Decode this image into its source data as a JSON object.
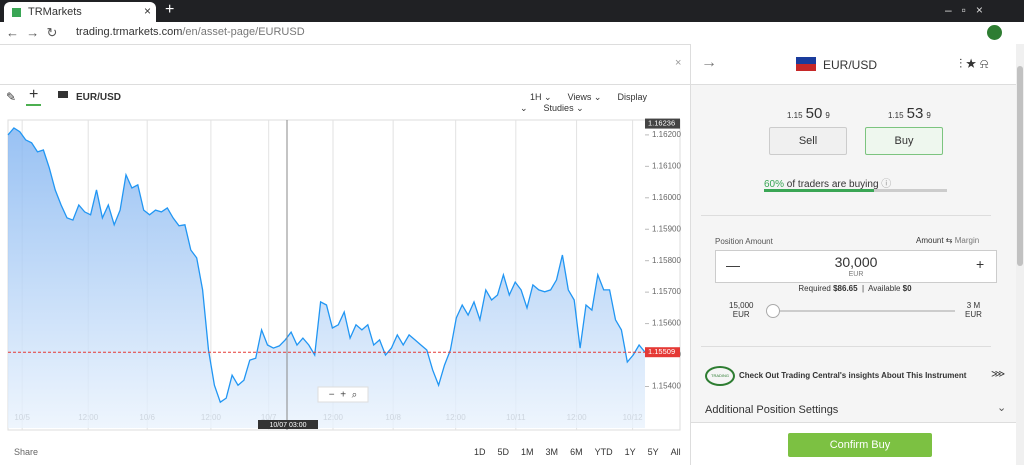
{
  "browser": {
    "tab_title": "TRMarkets",
    "url_host": "trading.trmarkets.com",
    "url_path": "/en/asset-page/EURUSD"
  },
  "chart": {
    "type": "line",
    "symbol": "EUR/USD",
    "toolbar": [
      "1H",
      "Views",
      "Display",
      "Studies"
    ],
    "values": [
      1.162,
      1.16222,
      1.1621,
      1.16184,
      1.16175,
      1.16146,
      1.16152,
      1.16095,
      1.16025,
      1.15977,
      1.15936,
      1.15929,
      1.15977,
      1.15955,
      1.15946,
      1.16025,
      1.15936,
      1.15977,
      1.15914,
      1.15961,
      1.16073,
      1.16031,
      1.16041,
      1.15961,
      1.15946,
      1.15961,
      1.15955,
      1.15968,
      1.15936,
      1.15911,
      1.15914,
      1.15834,
      1.15809,
      1.15707,
      1.15516,
      1.15404,
      1.1535,
      1.15363,
      1.15436,
      1.15404,
      1.1542,
      1.15484,
      1.1549,
      1.1558,
      1.15532,
      1.15522,
      1.15529,
      1.15548,
      1.15573,
      1.15532,
      1.15554,
      1.15532,
      1.155,
      1.15669,
      1.15659,
      1.15586,
      1.15596,
      1.15637,
      1.15554,
      1.15596,
      1.1558,
      1.15596,
      1.15532,
      1.15548,
      1.155,
      1.15522,
      1.15564,
      1.15532,
      1.15564,
      1.15548,
      1.15532,
      1.15516,
      1.15452,
      1.15404,
      1.15468,
      1.15516,
      1.15618,
      1.15659,
      1.15627,
      1.15669,
      1.15612,
      1.15707,
      1.15675,
      1.15691,
      1.15755,
      1.15691,
      1.15732,
      1.15707,
      1.1565,
      1.15723,
      1.15707,
      1.15701,
      1.15707,
      1.15739,
      1.15818,
      1.15707,
      1.15675,
      1.15522,
      1.15659,
      1.15643,
      1.15755,
      1.15707,
      1.15707,
      1.15612,
      1.1558,
      1.15478,
      1.155,
      1.15532,
      1.15509
    ],
    "xlim": [
      0,
      108
    ],
    "ylim": [
      1.15268,
      1.16241
    ],
    "yticks": [
      {
        "value": 1.162,
        "label": "1.16200"
      },
      {
        "value": 1.161,
        "label": "1.16100"
      },
      {
        "value": 1.16,
        "label": "1.16000"
      },
      {
        "value": 1.159,
        "label": "1.15900"
      },
      {
        "value": 1.158,
        "label": "1.15800"
      },
      {
        "value": 1.157,
        "label": "1.15700"
      },
      {
        "value": 1.156,
        "label": "1.15600"
      },
      {
        "value": 1.155,
        "label": "1.15500"
      },
      {
        "value": 1.154,
        "label": "1.15400"
      }
    ],
    "xticks": [
      {
        "value": 2.4,
        "label": "10/5"
      },
      {
        "value": 13.6,
        "label": "12:00"
      },
      {
        "value": 23.6,
        "label": "10/6"
      },
      {
        "value": 34.4,
        "label": "12:00"
      },
      {
        "value": 44.2,
        "label": "10/7"
      },
      {
        "value": 55.1,
        "label": "12:00"
      },
      {
        "value": 65.3,
        "label": "10/8"
      },
      {
        "value": 75.9,
        "label": "12:00"
      },
      {
        "value": 86.1,
        "label": "10/11"
      },
      {
        "value": 96.4,
        "label": "12:00"
      },
      {
        "value": 105.9,
        "label": "10/12"
      }
    ],
    "color": "#2196f3",
    "xgrid": true,
    "high_tag": {
      "value": 1.16236,
      "label": "1.16236"
    },
    "last_tag": {
      "value": 1.15509,
      "label": "1.15509"
    },
    "crosshair_label": "10/07 03:00",
    "share": "Share",
    "ranges": [
      "1D",
      "5D",
      "1M",
      "3M",
      "6M",
      "YTD",
      "1Y",
      "5Y",
      "All"
    ]
  },
  "panel": {
    "symbol": "EUR/USD",
    "sell": {
      "prefix": "1.15",
      "big": "50",
      "suffix": "9",
      "button": "Sell"
    },
    "buy": {
      "prefix": "1.15",
      "big": "53",
      "suffix": "9",
      "button": "Buy"
    },
    "sentiment": {
      "value": 60,
      "label": "60%",
      "text": "of traders are buying"
    },
    "position_amount": "Position Amount",
    "amount": "Amount",
    "margin": "Margin",
    "amount_value": "30,000",
    "amount_currency": "EUR",
    "required_label": "Required",
    "required_value": "$86.65",
    "available_label": "Available",
    "available_value": "$0",
    "min": "15,000",
    "min_currency": "EUR",
    "max": "3 M",
    "max_currency": "EUR",
    "tc_logo": "TRADING CENTRAL",
    "tc_text": "Check Out Trading Central's insights About This Instrument",
    "additional": "Additional Position Settings",
    "confirm": "Confirm Buy"
  }
}
